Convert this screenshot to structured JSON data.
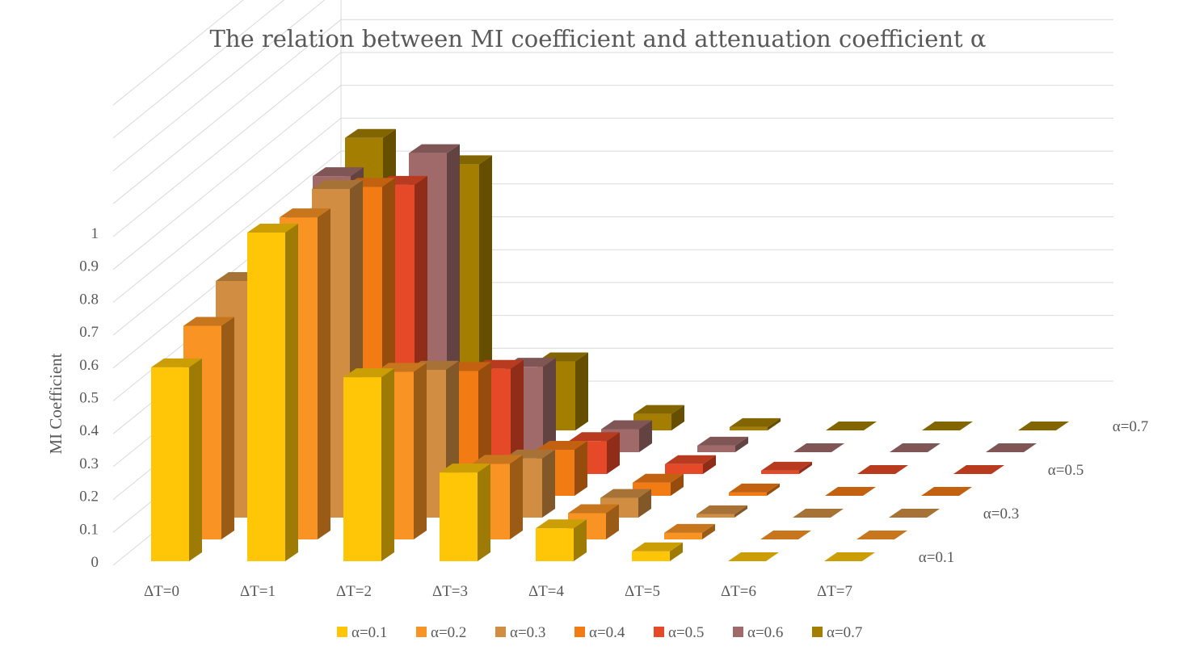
{
  "chart_data": {
    "type": "bar",
    "subtype": "3d-column",
    "title": "The relation between MI coefficient and attenuation coefficient α",
    "ylabel": "MI Coefficient",
    "xlabel": "",
    "ylim": [
      0,
      1.45
    ],
    "y_ticks": [
      "0",
      "0.1",
      "0.2",
      "0.3",
      "0.4",
      "0.5",
      "0.6",
      "0.7",
      "0.8",
      "0.9",
      "1"
    ],
    "categories": [
      "ΔT=0",
      "ΔT=1",
      "ΔT=2",
      "ΔT=3",
      "ΔT=4",
      "ΔT=5",
      "ΔT=6",
      "ΔT=7"
    ],
    "depth_labels": [
      "α=0.1",
      "α=0.3",
      "α=0.5",
      "α=0.7"
    ],
    "legend_placement": "bottom",
    "grid": true,
    "series": [
      {
        "name": "α=0.1",
        "color": "#FFC608",
        "values": [
          0.59,
          1.0,
          0.56,
          0.27,
          0.1,
          0.03,
          0.0,
          0.0
        ]
      },
      {
        "name": "α=0.2",
        "color": "#F99324",
        "values": [
          0.65,
          0.98,
          0.51,
          0.23,
          0.08,
          0.02,
          0.0,
          0.0
        ]
      },
      {
        "name": "α=0.3",
        "color": "#D18E42",
        "values": [
          0.72,
          1.0,
          0.45,
          0.18,
          0.06,
          0.01,
          0.0,
          0.0
        ]
      },
      {
        "name": "α=0.4",
        "color": "#F27B14",
        "values": [
          0.77,
          0.94,
          0.38,
          0.14,
          0.04,
          0.01,
          0.0,
          0.0
        ]
      },
      {
        "name": "α=0.5",
        "color": "#E64927",
        "values": [
          0.77,
          0.88,
          0.32,
          0.1,
          0.03,
          0.01,
          0.0,
          0.0
        ]
      },
      {
        "name": "α=0.6",
        "color": "#A06A6A",
        "values": [
          0.84,
          0.91,
          0.26,
          0.07,
          0.02,
          0.0,
          0.0,
          0.0
        ]
      },
      {
        "name": "α=0.7",
        "color": "#A37E00",
        "values": [
          0.89,
          0.81,
          0.21,
          0.05,
          0.01,
          0.0,
          0.0,
          0.0
        ]
      }
    ]
  }
}
